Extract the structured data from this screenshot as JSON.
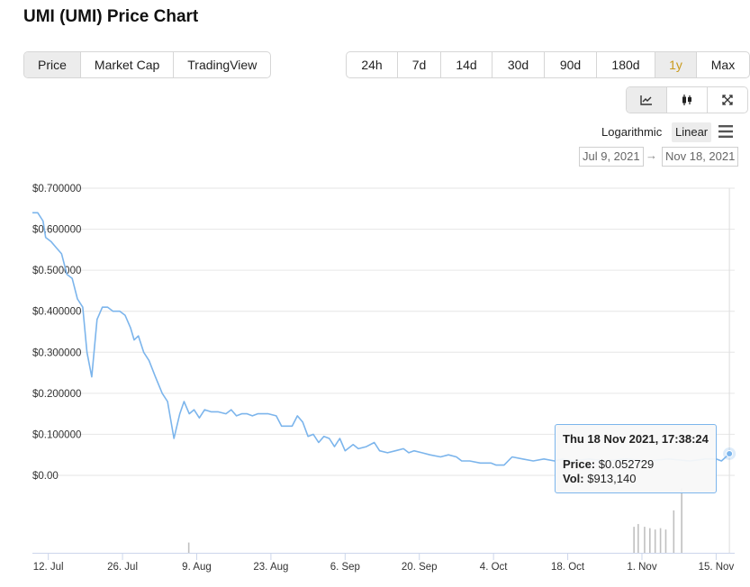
{
  "page": {
    "title": "UMI (UMI) Price Chart"
  },
  "tabs": [
    {
      "label": "Price",
      "active": true
    },
    {
      "label": "Market Cap",
      "active": false
    },
    {
      "label": "TradingView",
      "active": false
    }
  ],
  "ranges": [
    {
      "label": "24h",
      "w": 56
    },
    {
      "label": "7d",
      "w": 47
    },
    {
      "label": "14d",
      "w": 56
    },
    {
      "label": "30d",
      "w": 57
    },
    {
      "label": "90d",
      "w": 57
    },
    {
      "label": "180d",
      "w": 64
    },
    {
      "label": "1y",
      "w": 45,
      "active": true
    },
    {
      "label": "Max",
      "w": 58
    }
  ],
  "views": [
    {
      "name": "line-chart-view-button",
      "icon": "line-chart-icon",
      "active": true
    },
    {
      "name": "candlestick-view-button",
      "icon": "candlestick-icon",
      "active": false
    },
    {
      "name": "fullscreen-button",
      "icon": "fullscreen-icon",
      "active": false
    }
  ],
  "scale": {
    "log_label": "Logarithmic",
    "linear_label": "Linear",
    "selected": "Linear"
  },
  "date_range": {
    "from": "Jul 9, 2021",
    "arrow": "→",
    "to": "Nov 18, 2021"
  },
  "tooltip": {
    "date": "Thu 18 Nov 2021, 17:38:24",
    "price_label": "Price:",
    "price": "$0.052729",
    "vol_label": "Vol:",
    "vol": "$913,140"
  },
  "colors": {
    "line": "#7cb5ec",
    "volume": "#c0c0c0",
    "gold": "#c99a1c"
  },
  "chart_data": {
    "type": "line",
    "title": "",
    "ylabel": "",
    "y_tick_labels": [
      "$0.00",
      "$0.100000",
      "$0.200000",
      "$0.300000",
      "$0.400000",
      "$0.500000",
      "$0.600000",
      "$0.700000"
    ],
    "y_ticks": [
      0,
      0.1,
      0.2,
      0.3,
      0.4,
      0.5,
      0.6,
      0.7
    ],
    "ylim": [
      0,
      0.7
    ],
    "x_tick_labels": [
      "12. Jul",
      "26. Jul",
      "9. Aug",
      "23. Aug",
      "6. Sep",
      "20. Sep",
      "4. Oct",
      "18. Oct",
      "1. Nov",
      "15. Nov"
    ],
    "x_tick_days": [
      3,
      17,
      31,
      45,
      59,
      73,
      87,
      101,
      115,
      129
    ],
    "x_range_days": [
      0,
      132.5
    ],
    "x_start_date": "2021-07-09",
    "grid": true,
    "series": [
      {
        "name": "Price",
        "points": [
          [
            0,
            0.64
          ],
          [
            1,
            0.64
          ],
          [
            2,
            0.62
          ],
          [
            2.5,
            0.58
          ],
          [
            3.5,
            0.57
          ],
          [
            4.5,
            0.555
          ],
          [
            5.5,
            0.54
          ],
          [
            6.5,
            0.49
          ],
          [
            7.5,
            0.48
          ],
          [
            8.5,
            0.43
          ],
          [
            9.5,
            0.41
          ],
          [
            10.3,
            0.3
          ],
          [
            11.2,
            0.24
          ],
          [
            12.2,
            0.38
          ],
          [
            13.2,
            0.41
          ],
          [
            14.2,
            0.41
          ],
          [
            15.2,
            0.4
          ],
          [
            16.5,
            0.4
          ],
          [
            17.5,
            0.39
          ],
          [
            18.5,
            0.36
          ],
          [
            19.2,
            0.33
          ],
          [
            20,
            0.34
          ],
          [
            21,
            0.3
          ],
          [
            22,
            0.28
          ],
          [
            23.2,
            0.24
          ],
          [
            24.5,
            0.2
          ],
          [
            25.5,
            0.18
          ],
          [
            26.7,
            0.09
          ],
          [
            27.8,
            0.15
          ],
          [
            28.6,
            0.18
          ],
          [
            29.6,
            0.15
          ],
          [
            30.5,
            0.16
          ],
          [
            31.5,
            0.14
          ],
          [
            32.5,
            0.16
          ],
          [
            33.7,
            0.155
          ],
          [
            35,
            0.155
          ],
          [
            36.5,
            0.15
          ],
          [
            37.5,
            0.16
          ],
          [
            38.5,
            0.145
          ],
          [
            39.5,
            0.15
          ],
          [
            40.5,
            0.15
          ],
          [
            41.5,
            0.145
          ],
          [
            42.5,
            0.15
          ],
          [
            43.5,
            0.15
          ],
          [
            44.5,
            0.15
          ],
          [
            46,
            0.145
          ],
          [
            47,
            0.12
          ],
          [
            49,
            0.12
          ],
          [
            50,
            0.145
          ],
          [
            51,
            0.13
          ],
          [
            52,
            0.095
          ],
          [
            53,
            0.1
          ],
          [
            54,
            0.08
          ],
          [
            55,
            0.095
          ],
          [
            56,
            0.09
          ],
          [
            57,
            0.07
          ],
          [
            58,
            0.09
          ],
          [
            59,
            0.06
          ],
          [
            60.5,
            0.075
          ],
          [
            61.5,
            0.065
          ],
          [
            63,
            0.07
          ],
          [
            64.5,
            0.08
          ],
          [
            65.5,
            0.06
          ],
          [
            67,
            0.055
          ],
          [
            68.5,
            0.06
          ],
          [
            70,
            0.065
          ],
          [
            71,
            0.055
          ],
          [
            72,
            0.06
          ],
          [
            73.5,
            0.055
          ],
          [
            75,
            0.05
          ],
          [
            77,
            0.045
          ],
          [
            78.5,
            0.05
          ],
          [
            80,
            0.045
          ],
          [
            81,
            0.035
          ],
          [
            82.5,
            0.035
          ],
          [
            84.5,
            0.03
          ],
          [
            86.5,
            0.03
          ],
          [
            87.5,
            0.025
          ],
          [
            89,
            0.025
          ],
          [
            90.5,
            0.045
          ],
          [
            92.5,
            0.04
          ],
          [
            94.5,
            0.035
          ],
          [
            96.5,
            0.04
          ],
          [
            98.5,
            0.035
          ],
          [
            100,
            0.04
          ],
          [
            102,
            0.035
          ],
          [
            105,
            0.04
          ],
          [
            108,
            0.035
          ],
          [
            112,
            0.04
          ],
          [
            116,
            0.035
          ],
          [
            120,
            0.04
          ],
          [
            124,
            0.035
          ],
          [
            127,
            0.04
          ],
          [
            129,
            0.04
          ],
          [
            130,
            0.035
          ],
          [
            131.5,
            0.0527
          ]
        ]
      },
      {
        "name": "Volume",
        "points": [
          [
            29.5,
            0.15
          ],
          [
            113.5,
            0.38
          ],
          [
            114.3,
            0.42
          ],
          [
            115.5,
            0.38
          ],
          [
            116.5,
            0.36
          ],
          [
            117.5,
            0.34
          ],
          [
            118.5,
            0.36
          ],
          [
            119.5,
            0.34
          ],
          [
            121,
            0.62
          ],
          [
            122.5,
            0.94
          ]
        ]
      }
    ]
  }
}
